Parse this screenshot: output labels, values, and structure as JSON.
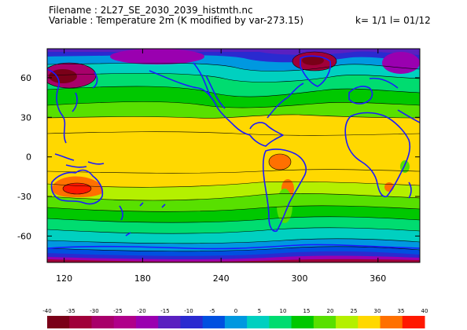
{
  "header": {
    "filename_line": "Filename : 2L27_SE_2030_2039_histmth.nc",
    "variable_line": "Variable : Temperature 2m (K modified by var-273.15)",
    "index_line": "k= 1/1 l= 01/12"
  },
  "axes": {
    "y_ticks": [
      "60",
      "30",
      "0",
      "-30",
      "-60"
    ],
    "y_values": [
      60,
      30,
      0,
      -30,
      -60
    ],
    "x_ticks": [
      "120",
      "180",
      "240",
      "300",
      "360"
    ],
    "x_values": [
      120,
      180,
      240,
      300,
      360
    ],
    "lon_range": [
      107,
      392
    ],
    "lat_range": [
      -80,
      82
    ]
  },
  "colorbar": {
    "labels": [
      "-40",
      "-35",
      "-30",
      "-25",
      "-20",
      "-15",
      "-10",
      "-5",
      "0",
      "5",
      "10",
      "15",
      "20",
      "25",
      "30",
      "35",
      "40"
    ],
    "colors": [
      "#7a0018",
      "#a0003a",
      "#a8006a",
      "#b0008a",
      "#9a00b0",
      "#5a20c0",
      "#2a2ad0",
      "#0050e0",
      "#0098e0",
      "#00d0c0",
      "#00dc70",
      "#00c800",
      "#58e000",
      "#b4f000",
      "#ffd800",
      "#ff7000",
      "#ff1800"
    ]
  },
  "map_colors": {
    "land_outline": "#1a1aff",
    "contour": "#000000"
  }
}
